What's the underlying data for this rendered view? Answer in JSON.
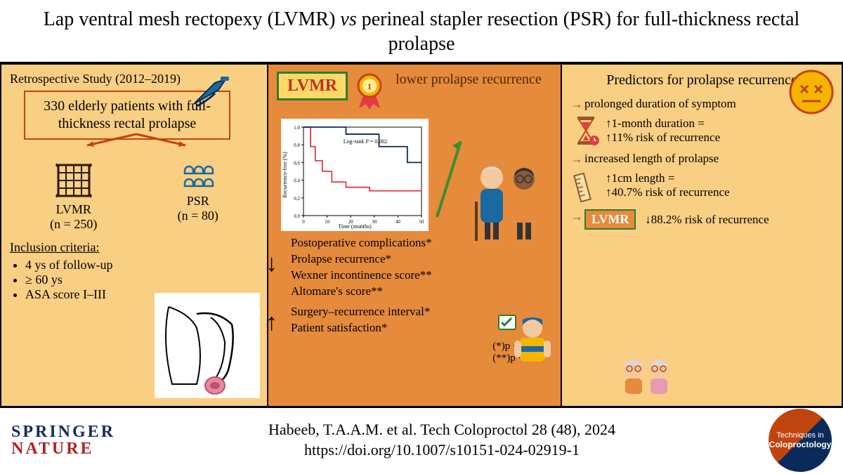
{
  "title": "Lap ventral mesh rectopexy (LVMR) <i>vs</i> perineal stapler resection (PSR) for full-thickness rectal prolapse",
  "left": {
    "study_label": "Retrospective Study (2012–2019)",
    "patients_box": "330 elderly patients with full-thickness rectal prolapse",
    "arm1_name": "LVMR",
    "arm1_n": "(n = 250)",
    "arm2_name": "PSR",
    "arm2_n": "(n = 80)",
    "incl_title": "Inclusion criteria:",
    "incl_items": [
      "4 ys of follow-up",
      "≥ 60 ys",
      "ASA score I–III"
    ]
  },
  "mid": {
    "badge": "LVMR",
    "lower_rec": "lower prolapse recurrence",
    "km": {
      "logrank": "Log-rank P = 0.002",
      "xlabel": "Time (months)",
      "ylabel": "Recurrence-free (%)",
      "xticks": [
        0,
        10,
        20,
        30,
        40,
        50
      ],
      "yticks": [
        0.0,
        0.2,
        0.4,
        0.6,
        0.8,
        1.0
      ],
      "series": [
        {
          "name": "PSR",
          "color": "#e63946",
          "points": [
            [
              0,
              1.0
            ],
            [
              2,
              1.0
            ],
            [
              3,
              0.78
            ],
            [
              5,
              0.62
            ],
            [
              8,
              0.5
            ],
            [
              12,
              0.38
            ],
            [
              18,
              0.32
            ],
            [
              28,
              0.28
            ],
            [
              40,
              0.28
            ],
            [
              50,
              0.28
            ]
          ]
        },
        {
          "name": "LVMR",
          "color": "#0a2a5a",
          "points": [
            [
              0,
              1.0
            ],
            [
              15,
              1.0
            ],
            [
              18,
              0.92
            ],
            [
              30,
              0.92
            ],
            [
              32,
              0.78
            ],
            [
              42,
              0.78
            ],
            [
              44,
              0.6
            ],
            [
              50,
              0.6
            ]
          ]
        }
      ],
      "bg": "#ffffff"
    },
    "outcomes_down": [
      "Postoperative complications*",
      "Prolapse recurrence*",
      "Wexner incontinence score**",
      "Altomare's score**"
    ],
    "outcomes_up": [
      "Surgery–recurrence interval*",
      "Patient satisfaction*"
    ],
    "sig1": "(*)p < 0.001",
    "sig2": "(**)p < 0.05"
  },
  "right": {
    "title": "Predictors for prolapse recurrence",
    "p1": "prolonged duration of symptom",
    "p1_sub_a": "1-month duration =",
    "p1_sub_b": "11% risk of recurrence",
    "p2": "increased length of prolapse",
    "p2_sub_a": "1cm length =",
    "p2_sub_b": "40.7% risk of recurrence",
    "lvmr": "LVMR",
    "lvmr_effect": "88.2% risk of recurrence"
  },
  "footer": {
    "springer1": "SPRINGER",
    "springer2": "NATURE",
    "citation_l1": "Habeeb, T.A.A.M. et al. Tech Coloproctol 28 (48), 2024",
    "citation_l2": "https://doi.org/10.1007/s10151-024-02919-1",
    "journal_t1": "Techniques in",
    "journal_t2": "Coloproctology"
  },
  "colors": {
    "panel_light": "#f9cf84",
    "panel_dark": "#e68a3c",
    "box_border": "#c1440e",
    "green": "#2e7d32",
    "arrow_green": "#3a8f2b"
  }
}
